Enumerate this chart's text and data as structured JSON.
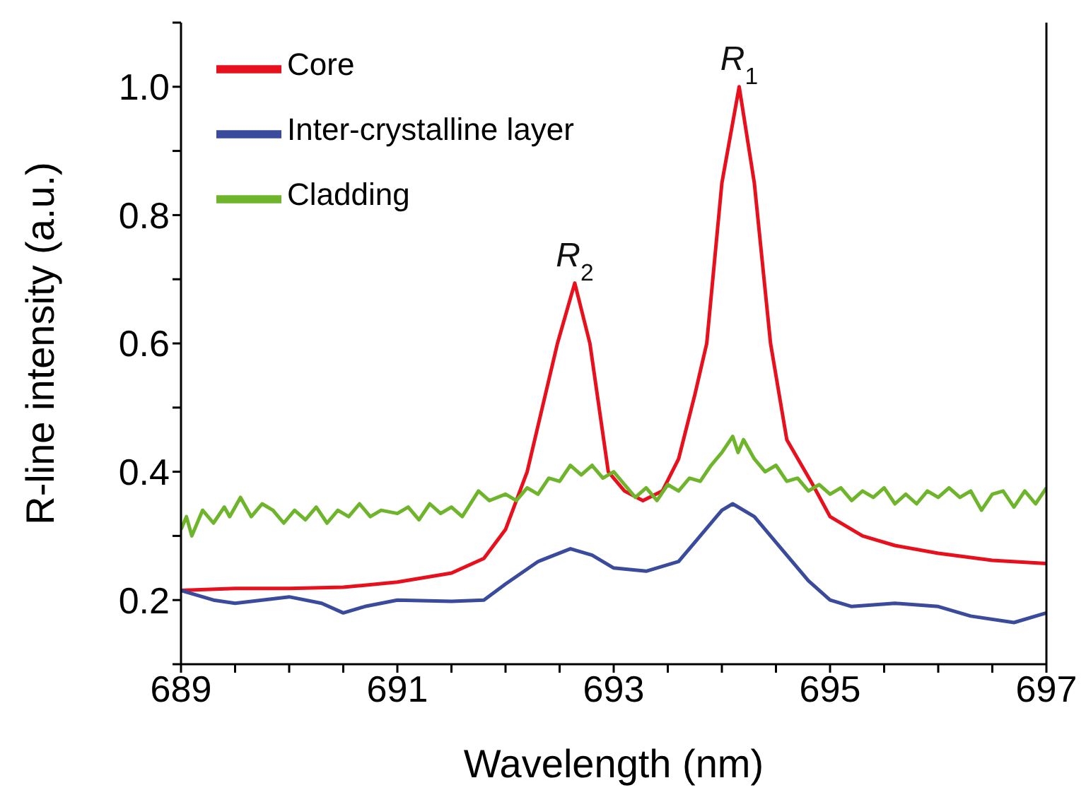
{
  "chart_data": {
    "type": "line",
    "xlabel": "Wavelength (nm)",
    "ylabel": "R-line intensity (a.u.)",
    "xlim": [
      689,
      697
    ],
    "ylim": [
      0.1,
      1.1
    ],
    "xticks": [
      689,
      {
        "value": 689.5,
        "label": null
      },
      {
        "value": 690,
        "label": null
      },
      {
        "value": 690.5,
        "label": null
      },
      691,
      {
        "value": 691.5,
        "label": null
      },
      {
        "value": 692,
        "label": null
      },
      {
        "value": 692.5,
        "label": null
      },
      693,
      {
        "value": 693.5,
        "label": null
      },
      {
        "value": 694,
        "label": null
      },
      {
        "value": 694.5,
        "label": null
      },
      695,
      {
        "value": 695.5,
        "label": null
      },
      {
        "value": 696,
        "label": null
      },
      {
        "value": 696.5,
        "label": null
      },
      697
    ],
    "yticks": [
      {
        "value": 0.1,
        "label": null
      },
      0.2,
      {
        "value": 0.3,
        "label": null
      },
      0.4,
      {
        "value": 0.5,
        "label": null
      },
      0.6,
      {
        "value": 0.7,
        "label": null
      },
      0.8,
      {
        "value": 0.9,
        "label": null
      },
      {
        "value": 1,
        "label": "1.0"
      },
      {
        "value": 1.1,
        "label": null
      }
    ],
    "grid": false,
    "legend": "top left",
    "marker": "none",
    "line_style": "solid",
    "annotations": [
      {
        "text": "R$_{1}$",
        "x": 694.16,
        "y": 1.0
      },
      {
        "text": "R$_{2}$",
        "x": 692.64,
        "y": 0.694
      }
    ],
    "series": [
      {
        "name": "Core",
        "color": "#e8101c",
        "x": [
          689,
          689.5,
          690,
          690.5,
          691,
          691.5,
          691.8,
          692.0,
          692.2,
          692.48,
          692.64,
          692.78,
          692.95,
          693.1,
          693.27,
          693.45,
          693.6,
          693.75,
          693.86,
          694.0,
          694.16,
          694.3,
          694.45,
          694.6,
          694.84,
          695,
          695.3,
          695.6,
          696,
          696.5,
          697
        ],
        "values": [
          0.215,
          0.218,
          0.218,
          0.22,
          0.228,
          0.242,
          0.265,
          0.31,
          0.4,
          0.6,
          0.694,
          0.6,
          0.4,
          0.37,
          0.355,
          0.37,
          0.42,
          0.52,
          0.6,
          0.85,
          1.0,
          0.85,
          0.6,
          0.45,
          0.38,
          0.33,
          0.3,
          0.285,
          0.273,
          0.262,
          0.257
        ]
      },
      {
        "name": "Inter-crystalline layer",
        "color": "#3a4b9e",
        "x": [
          689,
          689.3,
          689.5,
          690,
          690.3,
          690.5,
          690.7,
          691,
          691.5,
          691.8,
          692,
          692.3,
          692.6,
          692.8,
          693,
          693.3,
          693.6,
          693.8,
          694.0,
          694.1,
          694.3,
          694.6,
          694.8,
          695,
          695.2,
          695.6,
          696,
          696.3,
          696.7,
          697
        ],
        "values": [
          0.215,
          0.2,
          0.195,
          0.205,
          0.195,
          0.18,
          0.19,
          0.2,
          0.198,
          0.2,
          0.225,
          0.26,
          0.28,
          0.27,
          0.25,
          0.245,
          0.26,
          0.3,
          0.34,
          0.35,
          0.33,
          0.27,
          0.23,
          0.2,
          0.19,
          0.195,
          0.19,
          0.175,
          0.165,
          0.18
        ]
      },
      {
        "name": "Cladding",
        "color": "#6fb52c",
        "x": [
          689,
          689.05,
          689.1,
          689.2,
          689.3,
          689.4,
          689.45,
          689.55,
          689.65,
          689.75,
          689.85,
          689.95,
          690.05,
          690.15,
          690.25,
          690.35,
          690.45,
          690.55,
          690.65,
          690.75,
          690.85,
          691.0,
          691.1,
          691.2,
          691.3,
          691.4,
          691.5,
          691.6,
          691.75,
          691.85,
          692.0,
          692.1,
          692.2,
          692.3,
          692.4,
          692.5,
          692.6,
          692.7,
          692.8,
          692.9,
          693.0,
          693.1,
          693.2,
          693.3,
          693.4,
          693.5,
          693.6,
          693.7,
          693.8,
          693.9,
          694.0,
          694.1,
          694.15,
          694.2,
          694.3,
          694.4,
          694.5,
          694.6,
          694.7,
          694.8,
          694.9,
          695.0,
          695.1,
          695.2,
          695.3,
          695.4,
          695.5,
          695.6,
          695.7,
          695.8,
          695.9,
          696.0,
          696.1,
          696.2,
          696.3,
          696.4,
          696.5,
          696.6,
          696.7,
          696.8,
          696.9,
          697
        ],
        "values": [
          0.31,
          0.33,
          0.3,
          0.34,
          0.32,
          0.345,
          0.33,
          0.36,
          0.33,
          0.35,
          0.34,
          0.32,
          0.34,
          0.325,
          0.345,
          0.32,
          0.34,
          0.33,
          0.35,
          0.33,
          0.34,
          0.335,
          0.345,
          0.325,
          0.35,
          0.335,
          0.345,
          0.33,
          0.37,
          0.355,
          0.365,
          0.355,
          0.375,
          0.365,
          0.39,
          0.385,
          0.41,
          0.395,
          0.41,
          0.39,
          0.4,
          0.38,
          0.36,
          0.375,
          0.355,
          0.38,
          0.37,
          0.39,
          0.385,
          0.41,
          0.43,
          0.455,
          0.43,
          0.45,
          0.42,
          0.4,
          0.41,
          0.385,
          0.39,
          0.37,
          0.38,
          0.365,
          0.375,
          0.355,
          0.37,
          0.36,
          0.375,
          0.35,
          0.365,
          0.35,
          0.37,
          0.36,
          0.375,
          0.36,
          0.37,
          0.34,
          0.365,
          0.37,
          0.345,
          0.37,
          0.35,
          0.375
        ]
      }
    ]
  }
}
